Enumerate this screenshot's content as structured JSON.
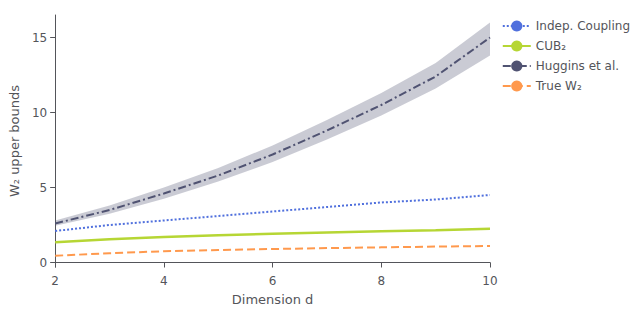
{
  "chart_data": {
    "type": "line",
    "xlabel": "Dimension d",
    "ylabel": "W₂ upper bounds",
    "x": [
      2,
      3,
      4,
      5,
      6,
      7,
      8,
      9,
      10
    ],
    "series": [
      {
        "name": "Indep. Coupling",
        "line_style": "dotted",
        "values": [
          2.1,
          2.5,
          2.8,
          3.1,
          3.4,
          3.7,
          4.0,
          4.2,
          4.5
        ]
      },
      {
        "name": "CUB₂",
        "line_style": "solid",
        "values": [
          1.35,
          1.55,
          1.7,
          1.82,
          1.92,
          2.0,
          2.08,
          2.15,
          2.25
        ]
      },
      {
        "name": "Huggins et al.",
        "line_style": "dashdot",
        "values": [
          2.6,
          3.5,
          4.6,
          5.8,
          7.2,
          8.8,
          10.5,
          12.4,
          15.0
        ],
        "lower": [
          2.45,
          3.25,
          4.25,
          5.4,
          6.7,
          8.2,
          9.8,
          11.6,
          13.8
        ],
        "upper": [
          2.8,
          3.8,
          5.0,
          6.3,
          7.8,
          9.5,
          11.3,
          13.3,
          16.0
        ]
      },
      {
        "name": "True W₂",
        "line_style": "dashed",
        "values": [
          0.45,
          0.62,
          0.75,
          0.83,
          0.9,
          0.96,
          1.01,
          1.06,
          1.1
        ]
      }
    ],
    "xlim": [
      2,
      10
    ],
    "ylim": [
      -0.3,
      16.5
    ],
    "xticks": [
      2,
      4,
      6,
      8,
      10
    ],
    "yticks": [
      0,
      5,
      10,
      15
    ],
    "grid": false,
    "legend": "right"
  }
}
